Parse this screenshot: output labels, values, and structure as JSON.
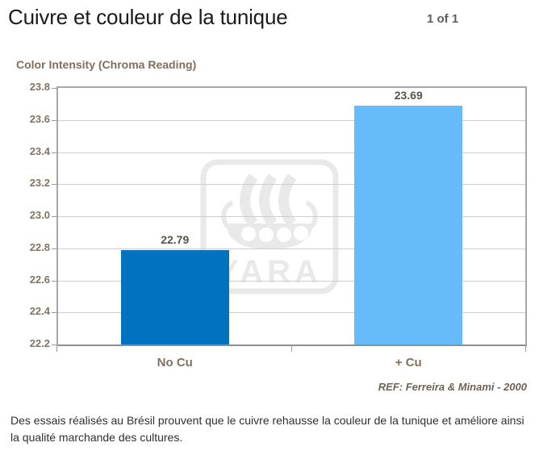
{
  "header": {
    "title": "Cuivre et couleur de la tunique",
    "page_indicator": "1 of 1"
  },
  "chart_data": {
    "type": "bar",
    "title": "Color Intensity (Chroma Reading)",
    "categories": [
      "No Cu",
      "+ Cu"
    ],
    "values": [
      22.79,
      23.69
    ],
    "value_labels": [
      "22.79",
      "23.69"
    ],
    "bar_colors": [
      "#0072c0",
      "#66bbfa"
    ],
    "ylim": [
      22.2,
      23.8
    ],
    "yticks": [
      "23.8",
      "23.6",
      "23.4",
      "23.2",
      "23.0",
      "22.8",
      "22.6",
      "22.4",
      "22.2"
    ],
    "grid": true,
    "legend": false,
    "reference": "REF: Ferreira & Minami - 2000"
  },
  "watermark": {
    "brand_text": "YARA",
    "color": "#e9e9e9"
  },
  "caption": "Des essais réalisés au Brésil prouvent que le cuivre rehausse la couleur de la tunique et améliore ainsi la qualité marchande des cultures."
}
